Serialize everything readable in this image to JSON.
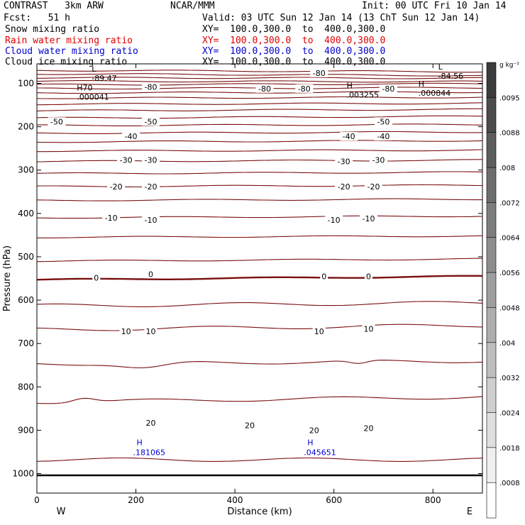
{
  "header": {
    "model": "CONTRAST   3km ARW",
    "org": "NCAR/MMM",
    "init": "Init: 00 UTC Fri 10 Jan 14",
    "fcst": "Fcst:   51 h",
    "valid": "Valid: 03 UTC Sun 12 Jan 14 (13 ChT Sun 12 Jan 14)"
  },
  "fields": [
    {
      "name": "Snow mixing ratio",
      "xy": "XY=  100.0,300.0  to  400.0,300.0",
      "color": "#000000"
    },
    {
      "name": "Rain water mixing ratio",
      "xy": "XY=  100.0,300.0  to  400.0,300.0",
      "color": "#e00000"
    },
    {
      "name": "Cloud water mixing ratio",
      "xy": "XY=  100.0,300.0  to  400.0,300.0",
      "color": "#0000d0"
    },
    {
      "name": "Cloud ice mixing ratio",
      "xy": "XY=  100.0,300.0  to  400.0,300.0",
      "color": "#000000"
    }
  ],
  "chart_data": {
    "type": "contour-cross-section",
    "xlabel": "Distance (km)",
    "ylabel": "Pressure (hPa)",
    "xlim": [
      0,
      900
    ],
    "ylim_pressure": [
      1045,
      55
    ],
    "x_ticks": [
      0,
      200,
      400,
      600,
      800
    ],
    "y_ticks": [
      100,
      200,
      300,
      400,
      500,
      600,
      700,
      800,
      900,
      1000
    ],
    "direction_left": "W",
    "direction_right": "E",
    "colorbar": {
      "unit": "g kg⁻¹",
      "labels": [
        ".0095",
        ".0088",
        ".008",
        ".0072",
        ".0064",
        ".0056",
        ".0048",
        ".004",
        ".0032",
        ".0024",
        ".0018",
        ".0008"
      ]
    },
    "contour_color": "#7a1010",
    "isotherm_levels_hPa": [
      [
        70,
        73
      ],
      [
        78,
        82
      ],
      [
        87,
        88
      ],
      [
        95,
        96
      ],
      [
        103,
        101
      ],
      [
        112,
        110
      ],
      [
        122,
        120
      ],
      [
        134,
        132
      ],
      [
        148,
        146
      ],
      [
        163,
        160
      ],
      [
        180,
        176
      ],
      [
        197,
        195
      ],
      [
        215,
        212
      ],
      [
        235,
        232
      ],
      [
        256,
        254
      ],
      [
        280,
        277
      ],
      [
        308,
        305
      ],
      [
        338,
        335
      ],
      [
        370,
        367
      ],
      [
        410,
        406
      ],
      [
        455,
        452
      ],
      [
        510,
        505
      ],
      [
        553,
        545
      ],
      [
        613,
        606
      ],
      [
        668,
        658
      ],
      [
        747,
        740
      ],
      [
        835,
        823
      ],
      [
        968,
        968
      ]
    ],
    "contour_labels": [
      {
        "text": "-80",
        "x": 570,
        "p": 76
      },
      {
        "text": "-80",
        "x": 230,
        "p": 108
      },
      {
        "text": "-80",
        "x": 460,
        "p": 112
      },
      {
        "text": "-80",
        "x": 540,
        "p": 112
      },
      {
        "text": "-80",
        "x": 710,
        "p": 112
      },
      {
        "text": "-50",
        "x": 40,
        "p": 188
      },
      {
        "text": "-50",
        "x": 230,
        "p": 188
      },
      {
        "text": "-50",
        "x": 700,
        "p": 188
      },
      {
        "text": "-40",
        "x": 190,
        "p": 222
      },
      {
        "text": "-40",
        "x": 630,
        "p": 222
      },
      {
        "text": "-40",
        "x": 700,
        "p": 222
      },
      {
        "text": "-30",
        "x": 180,
        "p": 277
      },
      {
        "text": "-30",
        "x": 230,
        "p": 277
      },
      {
        "text": "-30",
        "x": 620,
        "p": 280
      },
      {
        "text": "-30",
        "x": 690,
        "p": 277
      },
      {
        "text": "-20",
        "x": 160,
        "p": 338
      },
      {
        "text": "-20",
        "x": 230,
        "p": 338
      },
      {
        "text": "-20",
        "x": 620,
        "p": 338
      },
      {
        "text": "-20",
        "x": 680,
        "p": 338
      },
      {
        "text": "-10",
        "x": 150,
        "p": 410
      },
      {
        "text": "-10",
        "x": 230,
        "p": 415
      },
      {
        "text": "-10",
        "x": 600,
        "p": 415
      },
      {
        "text": "-10",
        "x": 670,
        "p": 412
      },
      {
        "text": "0",
        "x": 120,
        "p": 548
      },
      {
        "text": "0",
        "x": 230,
        "p": 540
      },
      {
        "text": "0",
        "x": 580,
        "p": 545
      },
      {
        "text": "0",
        "x": 670,
        "p": 545
      },
      {
        "text": "10",
        "x": 180,
        "p": 672
      },
      {
        "text": "10",
        "x": 230,
        "p": 672
      },
      {
        "text": "10",
        "x": 570,
        "p": 672
      },
      {
        "text": "10",
        "x": 670,
        "p": 666
      },
      {
        "text": "20",
        "x": 230,
        "p": 883
      },
      {
        "text": "20",
        "x": 430,
        "p": 889
      },
      {
        "text": "20",
        "x": 560,
        "p": 900
      },
      {
        "text": "20",
        "x": 670,
        "p": 895
      }
    ],
    "extrema_black": [
      {
        "mark": "L",
        "value": "-89.47",
        "x": 125,
        "p": 88
      },
      {
        "mark": "L",
        "value": "-84.56",
        "x": 825,
        "p": 83
      },
      {
        "mark": "H70",
        "value": ".000041",
        "x": 95,
        "p": 131
      },
      {
        "mark": "H",
        "value": ".003255",
        "x": 640,
        "p": 126
      },
      {
        "mark": "H",
        "value": ".000844",
        "x": 785,
        "p": 122
      }
    ],
    "extrema_blue": [
      {
        "mark": "H",
        "value": ".181065",
        "x": 230,
        "p": 948
      },
      {
        "mark": "H",
        "value": ".045651",
        "x": 575,
        "p": 948
      }
    ]
  }
}
